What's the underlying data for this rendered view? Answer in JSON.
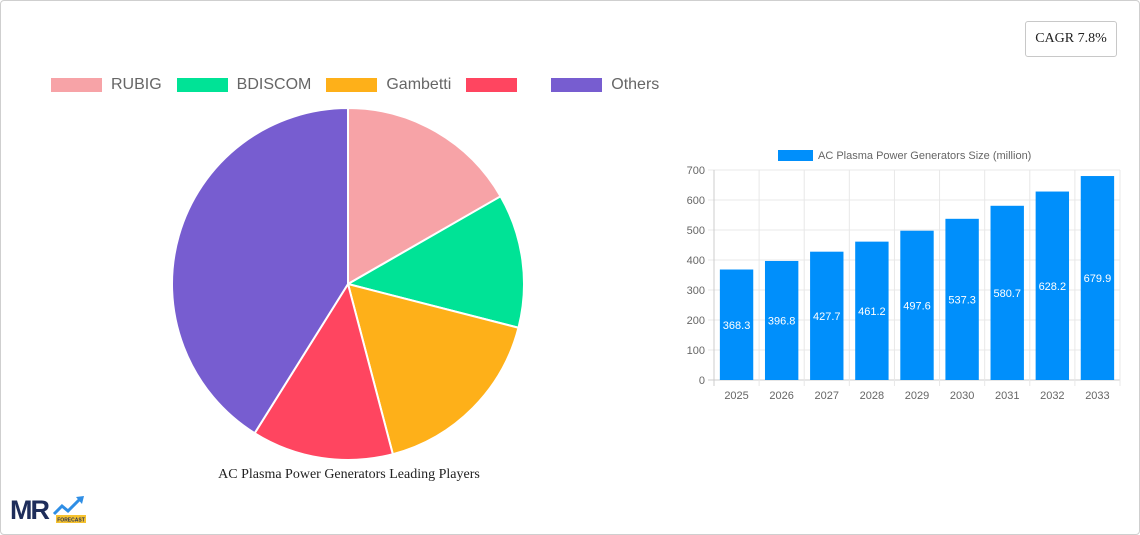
{
  "cagr_badge": {
    "label": "CAGR 7.8%"
  },
  "pie": {
    "title": "AC Plasma Power Generators Leading Players",
    "legend": [
      {
        "label": "RUBIG",
        "color": "#f7a3a7"
      },
      {
        "label": "BDISCOM",
        "color": "#00e396"
      },
      {
        "label": "Gambetti",
        "color": "#feb019"
      },
      {
        "label": "",
        "color": "#ff4560"
      },
      {
        "label": "Others",
        "color": "#775dd0"
      }
    ]
  },
  "bar": {
    "legend_label": "AC Plasma Power Generators Size (million)",
    "color": "#008ffb"
  },
  "chart_data": [
    {
      "type": "pie",
      "title": "AC Plasma Power Generators Leading Players",
      "categories": [
        "RUBIG",
        "BDISCOM",
        "Gambetti",
        "",
        "Others"
      ],
      "values": [
        16.7,
        12.3,
        16.9,
        13.0,
        41.1
      ],
      "colors": [
        "#f7a3a7",
        "#00e396",
        "#feb019",
        "#ff4560",
        "#775dd0"
      ],
      "legend_position": "top"
    },
    {
      "type": "bar",
      "title": "",
      "series": [
        {
          "name": "AC Plasma Power Generators Size (million)",
          "values": [
            368.3,
            396.8,
            427.7,
            461.2,
            497.6,
            537.3,
            580.7,
            628.2,
            679.9
          ]
        }
      ],
      "categories": [
        "2025",
        "2026",
        "2027",
        "2028",
        "2029",
        "2030",
        "2031",
        "2032",
        "2033"
      ],
      "xlabel": "",
      "ylabel": "",
      "ylim": [
        0,
        700
      ],
      "yticks": [
        0,
        100,
        200,
        300,
        400,
        500,
        600,
        700
      ],
      "grid": true,
      "data_labels": true,
      "legend_position": "top"
    }
  ],
  "logo": {
    "text": "MR",
    "sub": "FORECAST"
  }
}
